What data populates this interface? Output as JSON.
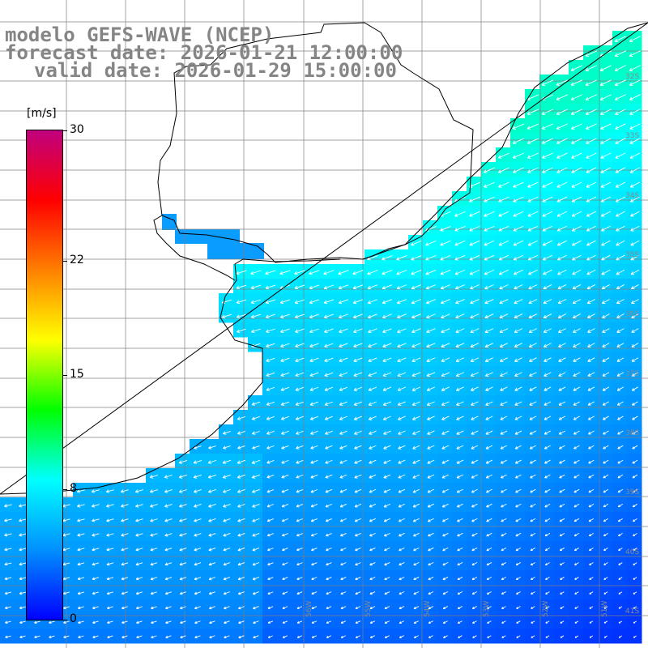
{
  "title": {
    "model": "modelo GEFS-WAVE (NCEP)",
    "forecast": "forecast date: 2026-01-21 12:00:00",
    "valid": "valid date: 2026-01-29 15:00:00"
  },
  "colorbar": {
    "unit": "[m/s]",
    "min": 0,
    "max": 30,
    "ticks": [
      {
        "value": 30,
        "label": "30"
      },
      {
        "value": 22,
        "label": "22"
      },
      {
        "value": 15,
        "label": "15"
      },
      {
        "value": 8,
        "label": "8"
      },
      {
        "value": 0,
        "label": "0"
      }
    ],
    "colors": [
      "#0000ff",
      "#0090ff",
      "#00ffff",
      "#00ff00",
      "#ffff00",
      "#ff8000",
      "#ff0000",
      "#c0007f"
    ]
  },
  "map": {
    "variable": "wind speed and direction",
    "lon_range": [
      -58.0,
      -50.0
    ],
    "lat_range": [
      -41.0,
      -30.3
    ],
    "lon_labels": [
      "56W",
      "55W",
      "54W",
      "53W",
      "52W",
      "51W"
    ],
    "lat_labels": [
      "32S",
      "33S",
      "34S",
      "35S",
      "36S",
      "37S",
      "38S",
      "39S",
      "40S",
      "41S"
    ],
    "grid_color": "#808080",
    "coast_color": "#000000",
    "land_color": "#ffffff",
    "arrow_color": "#ffffff",
    "wind_direction": "predominantly from the east-northeast (arrows pointing west-southwest)",
    "speed_range_ms": [
      2,
      9
    ]
  }
}
